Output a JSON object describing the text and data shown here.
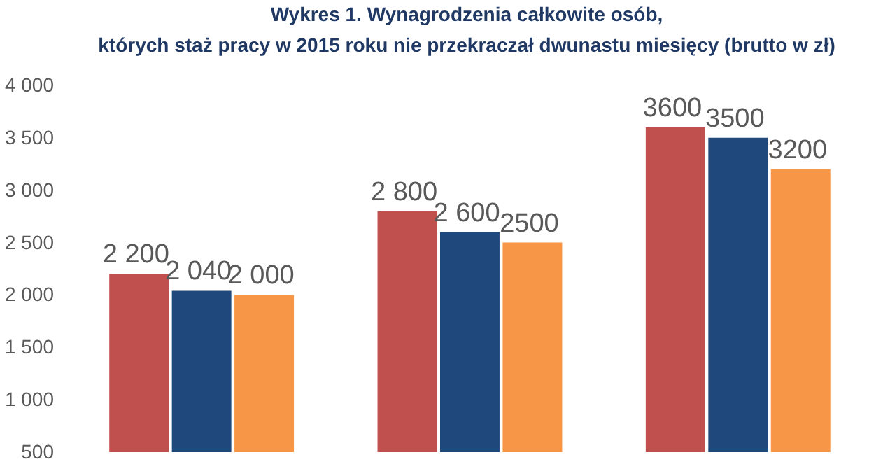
{
  "chart_data": {
    "type": "bar",
    "title": "Wykres 1. Wynagrodzenia całkowite osób,\nktórych staż pracy w 2015 roku nie przekraczał dwunastu miesięcy (brutto w zł)",
    "categories": [
      null,
      null,
      null
    ],
    "series": [
      {
        "color": "#c0504d",
        "values": [
          2200,
          2800,
          3600
        ],
        "value_labels": [
          "2 200",
          "2 800",
          "3600"
        ]
      },
      {
        "color": "#1f497d",
        "values": [
          2040,
          2600,
          3500
        ],
        "value_labels": [
          "2 040",
          "2 600",
          "3500"
        ]
      },
      {
        "color": "#f79646",
        "values": [
          2000,
          2500,
          3200
        ],
        "value_labels": [
          "2 000",
          "2500",
          "3200"
        ]
      }
    ],
    "ylim": [
      500,
      4000
    ],
    "yticks": [
      {
        "value": 500,
        "label": "500"
      },
      {
        "value": 1000,
        "label": "1 000"
      },
      {
        "value": 1500,
        "label": "1 500"
      },
      {
        "value": 2000,
        "label": "2 000"
      },
      {
        "value": 2500,
        "label": "2 500"
      },
      {
        "value": 3000,
        "label": "3 000"
      },
      {
        "value": 3500,
        "label": "3 500"
      },
      {
        "value": 4000,
        "label": "4 000"
      }
    ],
    "tick_labels": "y",
    "grid": false,
    "legend": false
  }
}
